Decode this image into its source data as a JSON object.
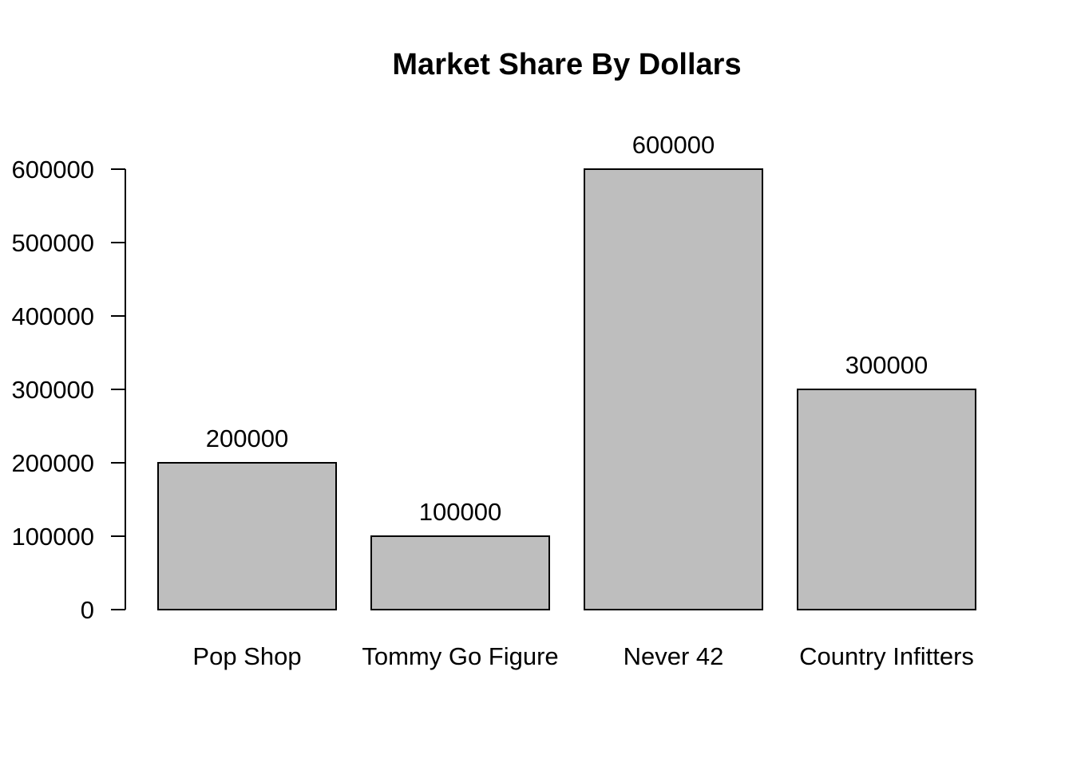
{
  "chart_data": {
    "type": "bar",
    "title": "Market Share By Dollars",
    "xlabel": "",
    "ylabel": "",
    "categories": [
      "Pop Shop",
      "Tommy Go Figure",
      "Never 42",
      "Country Infitters"
    ],
    "values": [
      200000,
      100000,
      600000,
      300000
    ],
    "data_labels": [
      "200000",
      "100000",
      "600000",
      "300000"
    ],
    "ylim": [
      0,
      600000
    ],
    "yticks": [
      0,
      100000,
      200000,
      300000,
      400000,
      500000,
      600000
    ],
    "ytick_labels": [
      "0",
      "100000",
      "200000",
      "300000",
      "400000",
      "500000",
      "600000"
    ],
    "grid": false,
    "legend": "none",
    "colors": {
      "bar_fill": "#bebebe",
      "bar_stroke": "#000000",
      "text": "#000000",
      "background": "#ffffff"
    }
  }
}
